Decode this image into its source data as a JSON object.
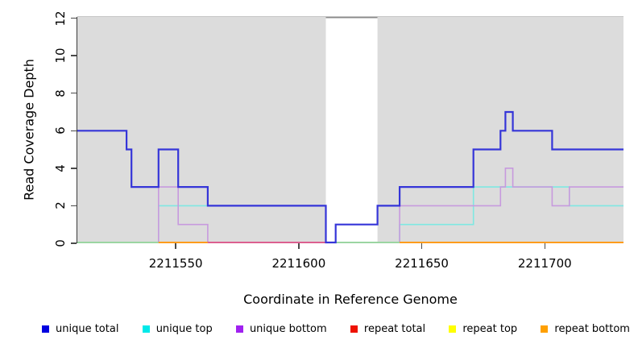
{
  "figure": {
    "background": "#ffffff",
    "plot_background": "#dcdcdc",
    "xlabel": "Coordinate in Reference Genome",
    "ylabel": "Read Coverage Depth"
  },
  "chart_data": {
    "type": "line",
    "subtype": "step",
    "title": "",
    "xlabel": "Coordinate in Reference Genome",
    "ylabel": "Read Coverage Depth",
    "xlim": [
      2211510,
      2211732
    ],
    "ylim": [
      0,
      12
    ],
    "x_ticks": [
      2211550,
      2211600,
      2211650,
      2211700
    ],
    "y_ticks": [
      0,
      2,
      4,
      6,
      8,
      10,
      12
    ],
    "grid": false,
    "legend_position": "bottom",
    "mask_regions": [
      {
        "x0": 2211611,
        "x1": 2211632,
        "fill": "#ffffff",
        "top_line_color": "#8a8a8a"
      }
    ],
    "series": [
      {
        "name": "unique total",
        "line_color": "#3535d8",
        "width": 2.2,
        "z": 6,
        "points": [
          [
            2211510,
            6
          ],
          [
            2211530,
            5
          ],
          [
            2211532,
            3
          ],
          [
            2211543,
            5
          ],
          [
            2211551,
            3
          ],
          [
            2211563,
            2
          ],
          [
            2211611,
            0
          ],
          [
            2211615,
            1
          ],
          [
            2211632,
            2
          ],
          [
            2211641,
            3
          ],
          [
            2211671,
            5
          ],
          [
            2211682,
            6
          ],
          [
            2211684,
            7
          ],
          [
            2211687,
            6
          ],
          [
            2211703,
            5
          ]
        ]
      },
      {
        "name": "unique top",
        "line_color": "#7fe8e2",
        "width": 1.6,
        "z": 3,
        "points": [
          [
            2211510,
            0
          ],
          [
            2211543,
            2
          ],
          [
            2211611,
            0
          ],
          [
            2211641,
            1
          ],
          [
            2211671,
            3
          ],
          [
            2211710,
            2
          ]
        ]
      },
      {
        "name": "unique bottom",
        "line_color": "#c79ade",
        "width": 1.6,
        "z": 4,
        "points": [
          [
            2211510,
            0
          ],
          [
            2211543,
            3
          ],
          [
            2211551,
            1
          ],
          [
            2211563,
            0
          ],
          [
            2211641,
            2
          ],
          [
            2211682,
            3
          ],
          [
            2211684,
            4
          ],
          [
            2211687,
            3
          ],
          [
            2211703,
            2
          ],
          [
            2211710,
            3
          ]
        ]
      },
      {
        "name": "repeat total",
        "line_color": "#e03030",
        "width": 1.6,
        "z": 0,
        "points": [
          [
            2211510,
            0
          ]
        ]
      },
      {
        "name": "repeat top",
        "line_color": "#f5f500",
        "width": 1.6,
        "z": 1,
        "points": [
          [
            2211510,
            0
          ]
        ]
      },
      {
        "name": "repeat bottom",
        "line_color": "#ff9c1c",
        "width": 2.0,
        "z": 2,
        "points": [
          [
            2211510,
            0
          ]
        ]
      }
    ],
    "baseline_segments": [
      {
        "x0": 2211510,
        "x1": 2211543,
        "color": "#9bd5a2"
      },
      {
        "x0": 2211543,
        "x1": 2211563,
        "color": "#ff9c1c"
      },
      {
        "x0": 2211563,
        "x1": 2211611,
        "color": "#dc6090"
      },
      {
        "x0": 2211615,
        "x1": 2211641,
        "color": "#9bd5a2"
      },
      {
        "x0": 2211641,
        "x1": 2211732,
        "color": "#ff9c1c"
      }
    ]
  },
  "legend": {
    "items": [
      {
        "label": "unique total",
        "color": "#0000e0"
      },
      {
        "label": "unique top",
        "color": "#00e9e9"
      },
      {
        "label": "unique bottom",
        "color": "#a021f0"
      },
      {
        "label": "repeat total",
        "color": "#ee1100"
      },
      {
        "label": "repeat top",
        "color": "#ffff00"
      },
      {
        "label": "repeat bottom",
        "color": "#ffa000"
      }
    ]
  }
}
